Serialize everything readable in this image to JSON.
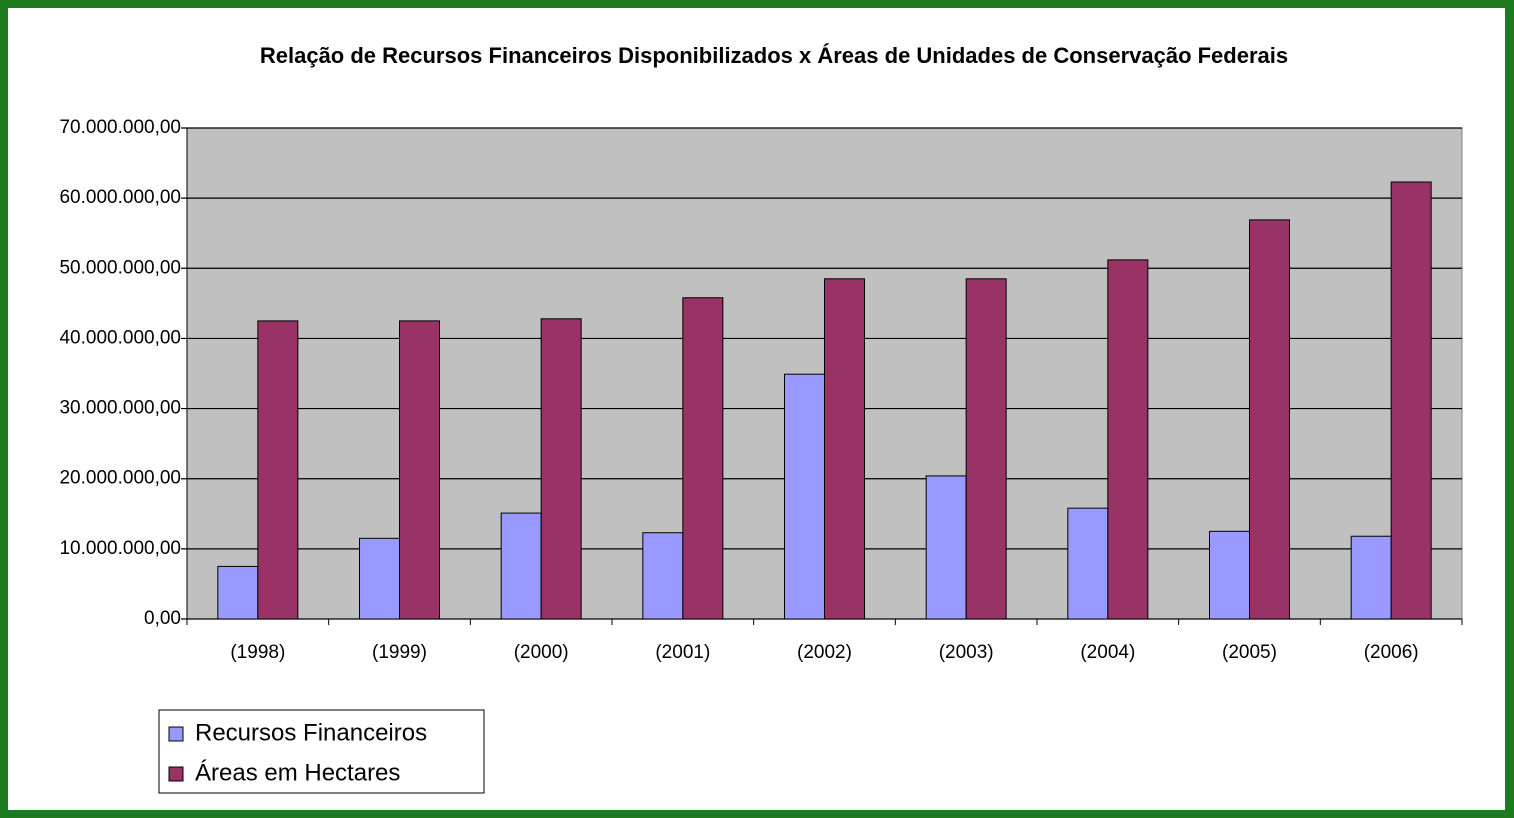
{
  "chart_data": {
    "type": "bar",
    "title": "Relação de Recursos Financeiros Disponibilizados x Áreas de Unidades de Conservação Federais",
    "categories": [
      "(1998)",
      "(1999)",
      "(2000)",
      "(2001)",
      "(2002)",
      "(2003)",
      "(2004)",
      "(2005)",
      "(2006)"
    ],
    "series": [
      {
        "name": "Recursos Financeiros",
        "color": "#9999ff",
        "values": [
          7500000,
          11500000,
          15100000,
          12300000,
          34900000,
          20400000,
          15800000,
          12500000,
          11800000
        ]
      },
      {
        "name": "Áreas em Hectares",
        "color": "#993366",
        "values": [
          42500000,
          42500000,
          42800000,
          45800000,
          48500000,
          48500000,
          51200000,
          56900000,
          62300000
        ]
      }
    ],
    "ylim": [
      0,
      70000000
    ],
    "yticks": [
      {
        "value": 0,
        "label": "0,00"
      },
      {
        "value": 10000000,
        "label": "10.000.000,00"
      },
      {
        "value": 20000000,
        "label": "20.000.000,00"
      },
      {
        "value": 30000000,
        "label": "30.000.000,00"
      },
      {
        "value": 40000000,
        "label": "40.000.000,00"
      },
      {
        "value": 50000000,
        "label": "50.000.000,00"
      },
      {
        "value": 60000000,
        "label": "60.000.000,00"
      },
      {
        "value": 70000000,
        "label": "70.000.000,00"
      }
    ],
    "grid": true,
    "legend": "bottom-left"
  }
}
